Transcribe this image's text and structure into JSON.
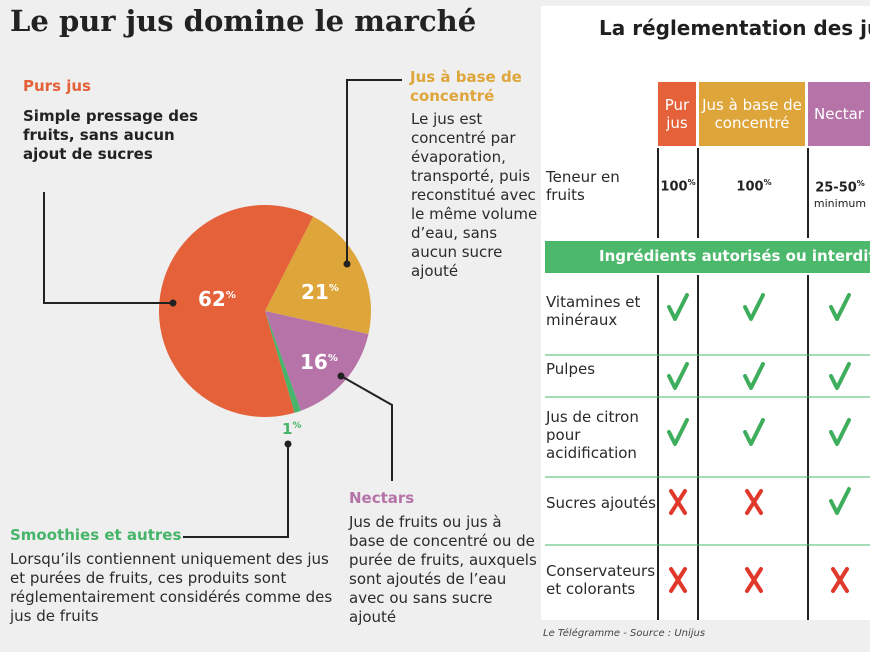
{
  "title": "Le pur jus domine le marché",
  "chart_data": {
    "type": "pie",
    "title": "Le pur jus domine le marché",
    "slices": [
      {
        "name": "Purs jus",
        "value": 62,
        "label": "62",
        "unit": "%",
        "color": "#e4613a"
      },
      {
        "name": "Jus à base de concentré",
        "value": 21,
        "label": "21",
        "unit": "%",
        "color": "#dea53a"
      },
      {
        "name": "Nectars",
        "value": 16,
        "label": "16",
        "unit": "%",
        "color": "#b573a8"
      },
      {
        "name": "Smoothies et autres",
        "value": 1,
        "label": "1",
        "unit": "%",
        "color": "#46b56a"
      }
    ]
  },
  "categories": {
    "purs": {
      "title": "Purs jus",
      "desc": "Simple pressage des fruits, sans aucun ajout de sucres"
    },
    "concentre": {
      "title": "Jus à base de concentré",
      "desc": "Le jus est concentré par évaporation, transporté, puis reconstitué avec le même volume d’eau, sans aucun sucre ajouté"
    },
    "nectars": {
      "title": "Nectars",
      "desc": "Jus de fruits ou  jus à base de concentré ou de purée de fruits, auxquels sont ajoutés de l’eau avec ou sans sucre ajouté"
    },
    "smoothies": {
      "title": "Smoothies et autres",
      "desc": "Lorsqu’ils contiennent uniquement des jus et purées de fruits, ces produits sont réglementairement considérés comme des jus de fruits"
    }
  },
  "table": {
    "title": "La réglementation des jus",
    "columns": [
      "Pur jus",
      "Jus à base de concentré",
      "Nectar"
    ],
    "teneur": {
      "label": "Teneur en fruits",
      "values": [
        "100",
        "100",
        "25-50"
      ],
      "unit": "%",
      "note": "minimum"
    },
    "section_label": "Ingrédients autorisés ou interdits",
    "rows": [
      {
        "label": "Vitamines et minéraux",
        "values": [
          "yes",
          "yes",
          "yes"
        ]
      },
      {
        "label": "Pulpes",
        "values": [
          "yes",
          "yes",
          "yes"
        ]
      },
      {
        "label": "Jus de citron pour acidification",
        "values": [
          "yes",
          "yes",
          "yes"
        ]
      },
      {
        "label": "Sucres ajoutés",
        "values": [
          "no",
          "no",
          "yes"
        ]
      },
      {
        "label": "Conservateurs et colorants",
        "values": [
          "no",
          "no",
          "no"
        ]
      }
    ],
    "yes_color": "#3fae5c",
    "no_color": "#e0392b"
  },
  "source": "Le Télégramme - Source : Unijus"
}
